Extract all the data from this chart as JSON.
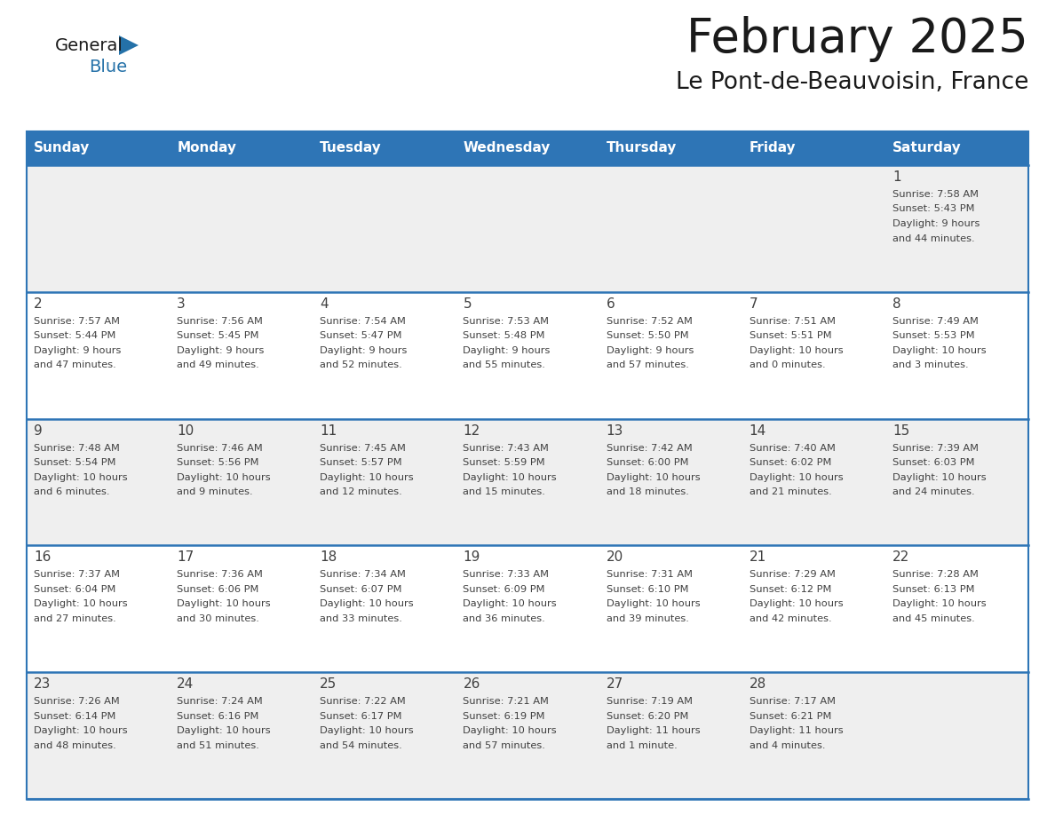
{
  "title": "February 2025",
  "subtitle": "Le Pont-de-Beauvoisin, France",
  "header_bg_color": "#2e75b6",
  "header_text_color": "#ffffff",
  "day_names": [
    "Sunday",
    "Monday",
    "Tuesday",
    "Wednesday",
    "Thursday",
    "Friday",
    "Saturday"
  ],
  "cell_bg_gray": "#efefef",
  "cell_bg_white": "#ffffff",
  "divider_color": "#2e75b6",
  "day_number_color": "#404040",
  "info_text_color": "#404040",
  "logo_dark_color": "#1a1a1a",
  "logo_blue_color": "#2471a8",
  "calendar": [
    [
      {
        "day": 0,
        "info": ""
      },
      {
        "day": 0,
        "info": ""
      },
      {
        "day": 0,
        "info": ""
      },
      {
        "day": 0,
        "info": ""
      },
      {
        "day": 0,
        "info": ""
      },
      {
        "day": 0,
        "info": ""
      },
      {
        "day": 1,
        "info": "Sunrise: 7:58 AM\nSunset: 5:43 PM\nDaylight: 9 hours\nand 44 minutes."
      }
    ],
    [
      {
        "day": 2,
        "info": "Sunrise: 7:57 AM\nSunset: 5:44 PM\nDaylight: 9 hours\nand 47 minutes."
      },
      {
        "day": 3,
        "info": "Sunrise: 7:56 AM\nSunset: 5:45 PM\nDaylight: 9 hours\nand 49 minutes."
      },
      {
        "day": 4,
        "info": "Sunrise: 7:54 AM\nSunset: 5:47 PM\nDaylight: 9 hours\nand 52 minutes."
      },
      {
        "day": 5,
        "info": "Sunrise: 7:53 AM\nSunset: 5:48 PM\nDaylight: 9 hours\nand 55 minutes."
      },
      {
        "day": 6,
        "info": "Sunrise: 7:52 AM\nSunset: 5:50 PM\nDaylight: 9 hours\nand 57 minutes."
      },
      {
        "day": 7,
        "info": "Sunrise: 7:51 AM\nSunset: 5:51 PM\nDaylight: 10 hours\nand 0 minutes."
      },
      {
        "day": 8,
        "info": "Sunrise: 7:49 AM\nSunset: 5:53 PM\nDaylight: 10 hours\nand 3 minutes."
      }
    ],
    [
      {
        "day": 9,
        "info": "Sunrise: 7:48 AM\nSunset: 5:54 PM\nDaylight: 10 hours\nand 6 minutes."
      },
      {
        "day": 10,
        "info": "Sunrise: 7:46 AM\nSunset: 5:56 PM\nDaylight: 10 hours\nand 9 minutes."
      },
      {
        "day": 11,
        "info": "Sunrise: 7:45 AM\nSunset: 5:57 PM\nDaylight: 10 hours\nand 12 minutes."
      },
      {
        "day": 12,
        "info": "Sunrise: 7:43 AM\nSunset: 5:59 PM\nDaylight: 10 hours\nand 15 minutes."
      },
      {
        "day": 13,
        "info": "Sunrise: 7:42 AM\nSunset: 6:00 PM\nDaylight: 10 hours\nand 18 minutes."
      },
      {
        "day": 14,
        "info": "Sunrise: 7:40 AM\nSunset: 6:02 PM\nDaylight: 10 hours\nand 21 minutes."
      },
      {
        "day": 15,
        "info": "Sunrise: 7:39 AM\nSunset: 6:03 PM\nDaylight: 10 hours\nand 24 minutes."
      }
    ],
    [
      {
        "day": 16,
        "info": "Sunrise: 7:37 AM\nSunset: 6:04 PM\nDaylight: 10 hours\nand 27 minutes."
      },
      {
        "day": 17,
        "info": "Sunrise: 7:36 AM\nSunset: 6:06 PM\nDaylight: 10 hours\nand 30 minutes."
      },
      {
        "day": 18,
        "info": "Sunrise: 7:34 AM\nSunset: 6:07 PM\nDaylight: 10 hours\nand 33 minutes."
      },
      {
        "day": 19,
        "info": "Sunrise: 7:33 AM\nSunset: 6:09 PM\nDaylight: 10 hours\nand 36 minutes."
      },
      {
        "day": 20,
        "info": "Sunrise: 7:31 AM\nSunset: 6:10 PM\nDaylight: 10 hours\nand 39 minutes."
      },
      {
        "day": 21,
        "info": "Sunrise: 7:29 AM\nSunset: 6:12 PM\nDaylight: 10 hours\nand 42 minutes."
      },
      {
        "day": 22,
        "info": "Sunrise: 7:28 AM\nSunset: 6:13 PM\nDaylight: 10 hours\nand 45 minutes."
      }
    ],
    [
      {
        "day": 23,
        "info": "Sunrise: 7:26 AM\nSunset: 6:14 PM\nDaylight: 10 hours\nand 48 minutes."
      },
      {
        "day": 24,
        "info": "Sunrise: 7:24 AM\nSunset: 6:16 PM\nDaylight: 10 hours\nand 51 minutes."
      },
      {
        "day": 25,
        "info": "Sunrise: 7:22 AM\nSunset: 6:17 PM\nDaylight: 10 hours\nand 54 minutes."
      },
      {
        "day": 26,
        "info": "Sunrise: 7:21 AM\nSunset: 6:19 PM\nDaylight: 10 hours\nand 57 minutes."
      },
      {
        "day": 27,
        "info": "Sunrise: 7:19 AM\nSunset: 6:20 PM\nDaylight: 11 hours\nand 1 minute."
      },
      {
        "day": 28,
        "info": "Sunrise: 7:17 AM\nSunset: 6:21 PM\nDaylight: 11 hours\nand 4 minutes."
      },
      {
        "day": 0,
        "info": ""
      }
    ]
  ],
  "row_bg_colors": [
    "#efefef",
    "#ffffff",
    "#efefef",
    "#ffffff",
    "#efefef"
  ]
}
